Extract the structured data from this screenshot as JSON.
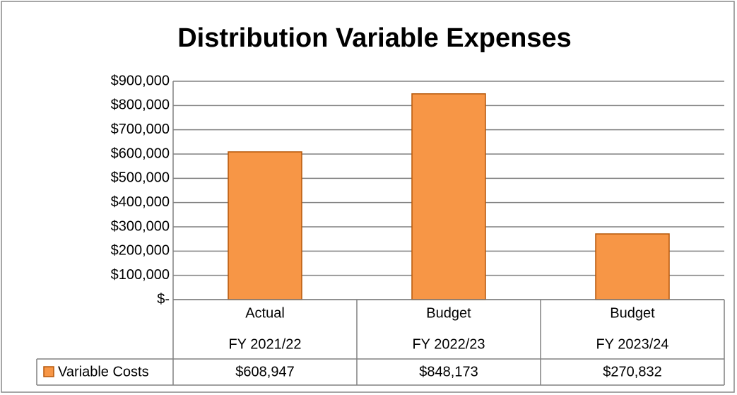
{
  "chart_data": {
    "type": "bar",
    "title": "Distribution Variable Expenses",
    "categories": [
      [
        "Actual",
        "FY 2021/22"
      ],
      [
        "Budget",
        "FY 2022/23"
      ],
      [
        "Budget",
        "FY 2023/24"
      ]
    ],
    "series": [
      {
        "name": "Variable Costs",
        "color": "#f79646",
        "values": [
          608947,
          848173,
          270832
        ],
        "value_labels": [
          "$608,947",
          "$848,173",
          "$270,832"
        ]
      }
    ],
    "ylim": [
      0,
      900000
    ],
    "yticks": [
      {
        "value": 0,
        "label": "$-"
      },
      {
        "value": 100000,
        "label": "$100,000"
      },
      {
        "value": 200000,
        "label": "$200,000"
      },
      {
        "value": 300000,
        "label": "$300,000"
      },
      {
        "value": 400000,
        "label": "$400,000"
      },
      {
        "value": 500000,
        "label": "$500,000"
      },
      {
        "value": 600000,
        "label": "$600,000"
      },
      {
        "value": 700000,
        "label": "$700,000"
      },
      {
        "value": 800000,
        "label": "$800,000"
      },
      {
        "value": 900000,
        "label": "$900,000"
      }
    ],
    "grid": true
  }
}
